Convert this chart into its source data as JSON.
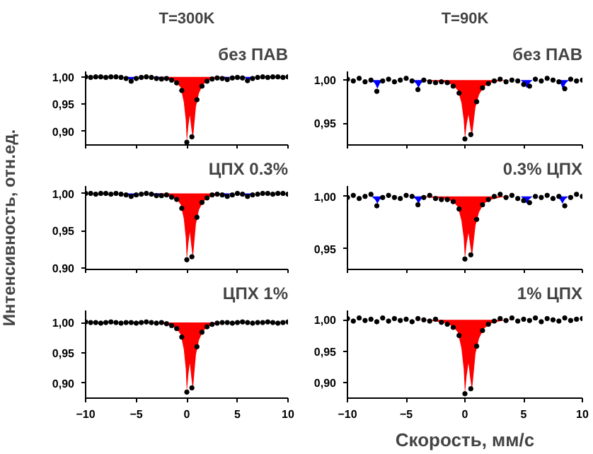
{
  "chart_data": [
    {
      "type": "scatter",
      "title": "T=300K",
      "annotations": [
        "без ПАВ"
      ],
      "tick_labels": "y",
      "xlim": [
        -10,
        10
      ],
      "ylim": [
        0.875,
        1.01
      ],
      "xticks": [
        -10,
        -5,
        0,
        5,
        10
      ],
      "yticks": [
        {
          "value": 0.9,
          "label": "0,90"
        },
        {
          "value": 0.95,
          "label": "0,95"
        },
        {
          "value": 1.0,
          "label": "1,00"
        }
      ],
      "x": [
        -10,
        -9.5,
        -9,
        -8.5,
        -8,
        -7.5,
        -7,
        -6.5,
        -6,
        -5.5,
        -5,
        -4.5,
        -4,
        -3.5,
        -3,
        -2.5,
        -2,
        -1.5,
        -1,
        -0.5,
        0,
        0.5,
        1,
        1.5,
        2,
        2.5,
        3,
        3.5,
        4,
        4.5,
        5,
        5.5,
        6,
        6.5,
        7,
        7.5,
        8,
        8.5,
        9,
        9.5,
        10
      ],
      "series": [
        {
          "type": "area",
          "color": "#ff0000",
          "x": [
            -4,
            -3,
            -2,
            -1.5,
            -1,
            -0.6,
            -0.3,
            -0.1,
            0,
            0.15,
            0.3,
            0.45,
            0.6,
            0.75,
            0.9,
            1.2,
            1.6,
            2.2,
            3,
            4
          ],
          "values": [
            1.0,
            0.999,
            0.996,
            0.994,
            0.989,
            0.98,
            0.954,
            0.92,
            0.88,
            0.91,
            0.93,
            0.905,
            0.885,
            0.915,
            0.945,
            0.97,
            0.986,
            0.994,
            0.998,
            1.0
          ]
        },
        {
          "type": "area",
          "color": "#0000ff",
          "x": [
            -6.2,
            -5.8,
            -5.5,
            -5.2,
            -4.8
          ],
          "values": [
            1.0,
            0.997,
            0.993,
            0.997,
            1.0
          ]
        },
        {
          "type": "area",
          "color": "#0000ff",
          "x": [
            -3.5,
            -3.1,
            -2.8,
            -2.5,
            -2.1
          ],
          "values": [
            1.0,
            0.998,
            0.996,
            0.998,
            1.0
          ]
        },
        {
          "type": "area",
          "color": "#0000ff",
          "x": [
            3.2,
            3.6,
            3.9,
            4.2,
            4.6
          ],
          "values": [
            1.0,
            0.998,
            0.995,
            0.998,
            1.0
          ]
        },
        {
          "type": "area",
          "color": "#0000ff",
          "x": [
            5.4,
            5.8,
            6.1,
            6.4,
            6.8
          ],
          "values": [
            1.0,
            0.997,
            0.993,
            0.997,
            1.0
          ]
        },
        {
          "color": "#000000",
          "marker": "circle",
          "values": [
            1.0,
            0.999,
            1.0,
            1.0,
            0.999,
            1.0,
            1.0,
            0.999,
            0.997,
            0.992,
            0.997,
            0.999,
            1.0,
            0.999,
            0.997,
            0.996,
            0.997,
            0.994,
            0.989,
            0.975,
            0.88,
            0.89,
            0.958,
            0.983,
            0.992,
            0.996,
            0.998,
            0.997,
            0.995,
            0.998,
            0.999,
            0.998,
            0.993,
            0.997,
            0.999,
            1.0,
            0.999,
            1.0,
            1.0,
            0.999,
            1.0
          ]
        }
      ]
    },
    {
      "type": "scatter",
      "title": "T=90K",
      "annotations": [
        "без ПАВ"
      ],
      "tick_labels": "y",
      "xlim": [
        -10,
        10
      ],
      "ylim": [
        0.925,
        1.01
      ],
      "xticks": [
        -10,
        -5,
        0,
        5,
        10
      ],
      "yticks": [
        {
          "value": 0.95,
          "label": "0,95"
        },
        {
          "value": 1.0,
          "label": "1,00"
        }
      ],
      "x": [
        -10,
        -9.5,
        -9,
        -8.5,
        -8,
        -7.5,
        -7,
        -6.5,
        -6,
        -5.5,
        -5,
        -4.5,
        -4,
        -3.5,
        -3,
        -2.5,
        -2,
        -1.5,
        -1,
        -0.5,
        0,
        0.5,
        1,
        1.5,
        2,
        2.5,
        3,
        3.5,
        4,
        4.5,
        5,
        5.5,
        6,
        6.5,
        7,
        7.5,
        8,
        8.5,
        9,
        9.5,
        10
      ],
      "series": [
        {
          "type": "area",
          "color": "#ff0000",
          "x": [
            -4,
            -3,
            -2,
            -1.5,
            -1,
            -0.6,
            -0.3,
            -0.1,
            0,
            0.15,
            0.3,
            0.45,
            0.6,
            0.75,
            0.9,
            1.2,
            1.6,
            2.2,
            3,
            4
          ],
          "values": [
            1.0,
            0.999,
            0.998,
            0.997,
            0.994,
            0.988,
            0.974,
            0.954,
            0.932,
            0.949,
            0.96,
            0.946,
            0.935,
            0.952,
            0.969,
            0.983,
            0.992,
            0.997,
            0.999,
            1.0
          ]
        },
        {
          "type": "area",
          "color": "#0000ff",
          "x": [
            -7.95,
            -7.65,
            -7.45,
            -7.25,
            -6.95
          ],
          "values": [
            1.0,
            0.996,
            0.99,
            0.996,
            1.0
          ]
        },
        {
          "type": "area",
          "color": "#0000ff",
          "x": [
            -4.45,
            -4.15,
            -3.95,
            -3.75,
            -3.45
          ],
          "values": [
            1.0,
            0.996,
            0.991,
            0.996,
            1.0
          ]
        },
        {
          "type": "area",
          "color": "#0000ff",
          "x": [
            4.75,
            5.05,
            5.25,
            5.45,
            5.75
          ],
          "values": [
            1.0,
            0.996,
            0.991,
            0.996,
            1.0
          ]
        },
        {
          "type": "area",
          "color": "#0000ff",
          "x": [
            7.85,
            8.15,
            8.35,
            8.55,
            8.85
          ],
          "values": [
            1.0,
            0.996,
            0.989,
            0.996,
            1.0
          ]
        },
        {
          "color": "#000000",
          "marker": "circle",
          "values": [
            1.001,
            0.999,
            1.002,
            0.998,
            1.0,
            0.987,
            0.999,
            1.001,
            0.998,
            1.0,
            1.002,
            0.999,
            0.989,
            1.0,
            0.998,
            0.997,
            0.998,
            0.997,
            0.993,
            0.985,
            0.932,
            0.937,
            0.975,
            0.991,
            0.996,
            0.999,
            1.001,
            0.998,
            1.0,
            0.999,
            0.995,
            0.993,
            1.001,
            0.999,
            1.002,
            1.0,
            0.998,
            0.99,
            1.001,
            0.999,
            1.0
          ]
        }
      ]
    },
    {
      "type": "scatter",
      "annotations": [
        "ЦПХ 0.3%"
      ],
      "ylabel": "Интенсивность, отн.ед.",
      "tick_labels": "y",
      "xlim": [
        -10,
        10
      ],
      "ylim": [
        0.898,
        1.01
      ],
      "xticks": [
        -10,
        -5,
        0,
        5,
        10
      ],
      "yticks": [
        {
          "value": 0.9,
          "label": "0,90"
        },
        {
          "value": 0.95,
          "label": "0,95"
        },
        {
          "value": 1.0,
          "label": "1,00"
        }
      ],
      "x": [
        -10,
        -9.5,
        -9,
        -8.5,
        -8,
        -7.5,
        -7,
        -6.5,
        -6,
        -5.5,
        -5,
        -4.5,
        -4,
        -3.5,
        -3,
        -2.5,
        -2,
        -1.5,
        -1,
        -0.5,
        0,
        0.5,
        1,
        1.5,
        2,
        2.5,
        3,
        3.5,
        4,
        4.5,
        5,
        5.5,
        6,
        6.5,
        7,
        7.5,
        8,
        8.5,
        9,
        9.5,
        10
      ],
      "series": [
        {
          "type": "area",
          "color": "#ff0000",
          "x": [
            -4,
            -3,
            -2,
            -1.5,
            -1,
            -0.6,
            -0.3,
            -0.1,
            0,
            0.15,
            0.3,
            0.45,
            0.6,
            0.75,
            0.9,
            1.2,
            1.6,
            2.2,
            3,
            4
          ],
          "values": [
            1.0,
            0.999,
            0.997,
            0.995,
            0.992,
            0.985,
            0.966,
            0.94,
            0.91,
            0.933,
            0.948,
            0.929,
            0.913,
            0.936,
            0.959,
            0.978,
            0.989,
            0.995,
            0.998,
            1.0
          ]
        },
        {
          "type": "area",
          "color": "#0000ff",
          "x": [
            -6.2,
            -5.8,
            -5.5,
            -5.2,
            -4.8
          ],
          "values": [
            1.0,
            0.998,
            0.996,
            0.998,
            1.0
          ]
        },
        {
          "type": "area",
          "color": "#0000ff",
          "x": [
            -3.7,
            -3.3,
            -3.0,
            -2.7,
            -2.3
          ],
          "values": [
            1.0,
            0.998,
            0.996,
            0.998,
            1.0
          ]
        },
        {
          "type": "area",
          "color": "#0000ff",
          "x": [
            3.1,
            3.5,
            3.8,
            4.1,
            4.5
          ],
          "values": [
            1.0,
            0.998,
            0.996,
            0.998,
            1.0
          ]
        },
        {
          "type": "area",
          "color": "#0000ff",
          "x": [
            5.3,
            5.7,
            6.0,
            6.3,
            6.7
          ],
          "values": [
            1.0,
            0.998,
            0.996,
            0.998,
            1.0
          ]
        },
        {
          "color": "#000000",
          "marker": "circle",
          "values": [
            1.0,
            1.0,
            0.999,
            1.0,
            1.0,
            0.999,
            1.0,
            0.999,
            0.998,
            0.996,
            0.998,
            0.999,
            1.0,
            0.999,
            0.997,
            0.997,
            0.998,
            0.995,
            0.992,
            0.98,
            0.911,
            0.915,
            0.968,
            0.988,
            0.994,
            0.998,
            0.999,
            0.998,
            0.996,
            0.998,
            1.0,
            0.999,
            0.996,
            0.998,
            0.999,
            1.0,
            1.0,
            0.999,
            1.0,
            1.0,
            0.999
          ]
        }
      ]
    },
    {
      "type": "scatter",
      "annotations": [
        "0.3% ЦПХ"
      ],
      "tick_labels": "y",
      "xlim": [
        -10,
        10
      ],
      "ylim": [
        0.93,
        1.01
      ],
      "xticks": [
        -10,
        -5,
        0,
        5,
        10
      ],
      "yticks": [
        {
          "value": 0.95,
          "label": "0,95"
        },
        {
          "value": 1.0,
          "label": "1,00"
        }
      ],
      "x": [
        -10,
        -9.5,
        -9,
        -8.5,
        -8,
        -7.5,
        -7,
        -6.5,
        -6,
        -5.5,
        -5,
        -4.5,
        -4,
        -3.5,
        -3,
        -2.5,
        -2,
        -1.5,
        -1,
        -0.5,
        0,
        0.5,
        1,
        1.5,
        2,
        2.5,
        3,
        3.5,
        4,
        4.5,
        5,
        5.5,
        6,
        6.5,
        7,
        7.5,
        8,
        8.5,
        9,
        9.5,
        10
      ],
      "series": [
        {
          "type": "area",
          "color": "#ff0000",
          "x": [
            -4,
            -3,
            -2,
            -1.5,
            -1,
            -0.6,
            -0.3,
            -0.1,
            0,
            0.15,
            0.3,
            0.45,
            0.6,
            0.75,
            0.9,
            1.2,
            1.6,
            2.2,
            3,
            4
          ],
          "values": [
            1.0,
            0.999,
            0.998,
            0.997,
            0.995,
            0.99,
            0.977,
            0.96,
            0.94,
            0.955,
            0.965,
            0.953,
            0.942,
            0.957,
            0.972,
            0.985,
            0.993,
            0.997,
            0.999,
            1.0
          ]
        },
        {
          "type": "area",
          "color": "#0000ff",
          "x": [
            -7.95,
            -7.65,
            -7.45,
            -7.25,
            -6.95
          ],
          "values": [
            1.0,
            0.997,
            0.993,
            0.997,
            1.0
          ]
        },
        {
          "type": "area",
          "color": "#0000ff",
          "x": [
            -4.45,
            -4.15,
            -3.95,
            -3.75,
            -3.45
          ],
          "values": [
            1.0,
            0.997,
            0.993,
            0.997,
            1.0
          ]
        },
        {
          "type": "area",
          "color": "#0000ff",
          "x": [
            4.75,
            5.05,
            5.25,
            5.45,
            5.75
          ],
          "values": [
            1.0,
            0.997,
            0.993,
            0.997,
            1.0
          ]
        },
        {
          "type": "area",
          "color": "#0000ff",
          "x": [
            7.8,
            8.1,
            8.3,
            8.5,
            8.8
          ],
          "values": [
            1.0,
            0.997,
            0.993,
            0.997,
            1.0
          ]
        },
        {
          "color": "#000000",
          "marker": "circle",
          "values": [
            0.999,
            1.001,
            0.998,
            1.0,
            1.002,
            0.991,
            0.999,
            1.001,
            0.999,
            0.998,
            1.001,
            1.0,
            0.992,
            0.999,
            1.001,
            0.998,
            0.997,
            0.997,
            0.995,
            0.988,
            0.94,
            0.944,
            0.978,
            0.992,
            0.997,
            1.0,
            1.002,
            0.999,
            1.001,
            0.998,
            0.996,
            0.994,
            1.0,
            0.999,
            1.001,
            0.998,
            1.0,
            0.991,
            0.999,
            1.002,
            1.0
          ]
        }
      ]
    },
    {
      "type": "scatter",
      "annotations": [
        "ЦПХ 1%"
      ],
      "xlim": [
        -10,
        10
      ],
      "ylim": [
        0.875,
        1.02
      ],
      "xticks": [
        -10,
        -5,
        0,
        5,
        10
      ],
      "yticks": [
        {
          "value": 0.9,
          "label": "0,90"
        },
        {
          "value": 0.95,
          "label": "0,95"
        },
        {
          "value": 1.0,
          "label": "1,00"
        }
      ],
      "x": [
        -10,
        -9.5,
        -9,
        -8.5,
        -8,
        -7.5,
        -7,
        -6.5,
        -6,
        -5.5,
        -5,
        -4.5,
        -4,
        -3.5,
        -3,
        -2.5,
        -2,
        -1.5,
        -1,
        -0.5,
        0,
        0.5,
        1,
        1.5,
        2,
        2.5,
        3,
        3.5,
        4,
        4.5,
        5,
        5.5,
        6,
        6.5,
        7,
        7.5,
        8,
        8.5,
        9,
        9.5,
        10
      ],
      "series": [
        {
          "type": "area",
          "color": "#ff0000",
          "x": [
            -4,
            -3,
            -2,
            -1.5,
            -1,
            -0.6,
            -0.3,
            -0.1,
            0,
            0.15,
            0.3,
            0.45,
            0.6,
            0.75,
            0.9,
            1.2,
            1.6,
            2.2,
            3,
            4
          ],
          "values": [
            1.0,
            0.999,
            0.997,
            0.994,
            0.99,
            0.98,
            0.956,
            0.923,
            0.885,
            0.914,
            0.933,
            0.909,
            0.888,
            0.918,
            0.947,
            0.971,
            0.986,
            0.994,
            0.998,
            1.0
          ]
        },
        {
          "color": "#000000",
          "marker": "circle",
          "values": [
            1.001,
            1.0,
            1.0,
            0.999,
            1.0,
            1.001,
            1.0,
            0.999,
            1.0,
            1.0,
            0.999,
            1.0,
            1.001,
            1.0,
            0.999,
            1.0,
            0.998,
            0.995,
            0.99,
            0.976,
            0.885,
            0.892,
            0.96,
            0.984,
            0.993,
            0.997,
            0.999,
            1.0,
            1.0,
            0.999,
            1.0,
            1.001,
            1.0,
            0.999,
            1.0,
            1.0,
            1.001,
            1.0,
            0.999,
            1.0,
            1.001
          ]
        }
      ]
    },
    {
      "type": "scatter",
      "annotations": [
        "1% ЦПХ"
      ],
      "xlabel": "Скорость, мм/с",
      "xlim": [
        -10,
        10
      ],
      "ylim": [
        0.875,
        1.015
      ],
      "xticks": [
        -10,
        -5,
        0,
        5,
        10
      ],
      "yticks": [
        {
          "value": 0.9,
          "label": "0,90"
        },
        {
          "value": 0.95,
          "label": "0,95"
        },
        {
          "value": 1.0,
          "label": "1,00"
        }
      ],
      "x": [
        -10,
        -9.5,
        -9,
        -8.5,
        -8,
        -7.5,
        -7,
        -6.5,
        -6,
        -5.5,
        -5,
        -4.5,
        -4,
        -3.5,
        -3,
        -2.5,
        -2,
        -1.5,
        -1,
        -0.5,
        0,
        0.5,
        1,
        1.5,
        2,
        2.5,
        3,
        3.5,
        4,
        4.5,
        5,
        5.5,
        6,
        6.5,
        7,
        7.5,
        8,
        8.5,
        9,
        9.5,
        10
      ],
      "series": [
        {
          "type": "area",
          "color": "#ff0000",
          "x": [
            -4,
            -3,
            -2,
            -1.5,
            -1,
            -0.6,
            -0.3,
            -0.1,
            0,
            0.15,
            0.3,
            0.45,
            0.6,
            0.75,
            0.9,
            1.2,
            1.6,
            2.2,
            3,
            4
          ],
          "values": [
            1.0,
            0.999,
            0.996,
            0.994,
            0.989,
            0.98,
            0.955,
            0.921,
            0.882,
            0.911,
            0.931,
            0.907,
            0.887,
            0.916,
            0.946,
            0.97,
            0.986,
            0.994,
            0.998,
            1.0
          ]
        },
        {
          "color": "#000000",
          "marker": "circle",
          "values": [
            1.002,
            0.998,
            1.003,
            0.999,
            1.001,
            0.997,
            1.003,
            0.998,
            1.002,
            0.999,
            1.001,
            0.997,
            1.002,
            1.0,
            0.998,
            1.001,
            0.996,
            0.993,
            0.988,
            0.975,
            0.882,
            0.89,
            0.958,
            0.983,
            0.993,
            0.998,
            1.002,
            0.999,
            1.003,
            0.998,
            1.001,
            0.999,
            1.003,
            0.997,
            1.002,
            1.0,
            0.998,
            1.003,
            0.999,
            1.001,
            1.002
          ]
        }
      ]
    }
  ]
}
